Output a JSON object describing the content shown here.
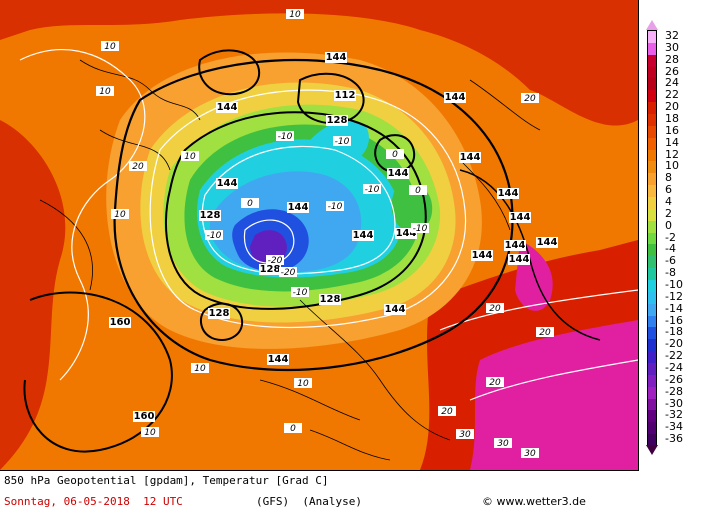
{
  "map": {
    "variable": "850 hPa Geopotential [gpdam], Temperatur [Grad C]",
    "date_line": "Sonntag, 06-05-2018  12 UTC",
    "model": "(GFS)  (Analyse)",
    "credit": "www.wetter3.de",
    "colors": {
      "warm_outer": "#d83000",
      "orange": "#f07800",
      "light_orange": "#f8a030",
      "yellow": "#f0d040",
      "lime": "#a0e040",
      "green": "#40c040",
      "cyan": "#20d0e0",
      "light_blue": "#40a8f0",
      "blue": "#2050e0",
      "violet": "#6020c0",
      "magenta": "#f020d0"
    },
    "geopotential_labels": [
      "144",
      "144",
      "144",
      "144",
      "144",
      "144",
      "144",
      "144",
      "144",
      "144",
      "144",
      "144",
      "128",
      "128",
      "128",
      "128",
      "128",
      "112",
      "160",
      "160",
      "144",
      "144",
      "144",
      "144",
      "144"
    ],
    "temperature_labels": [
      "10",
      "10",
      "10",
      "10",
      "10",
      "20",
      "20",
      "-10",
      "-10",
      "-10",
      "-10",
      "-10",
      "-20",
      "-20",
      "-10",
      "0",
      "0",
      "0",
      "10",
      "10",
      "20",
      "20",
      "20",
      "30",
      "30",
      "30",
      "20",
      "10",
      "0",
      "-10"
    ]
  },
  "legend": {
    "labels": [
      "32",
      "30",
      "28",
      "26",
      "24",
      "22",
      "20",
      "18",
      "16",
      "14",
      "12",
      "10",
      "8",
      "6",
      "4",
      "2",
      "0",
      "-2",
      "-4",
      "-6",
      "-8",
      "-10",
      "-12",
      "-14",
      "-16",
      "-18",
      "-20",
      "-22",
      "-24",
      "-26",
      "-28",
      "-30",
      "-32",
      "-34",
      "-36"
    ],
    "colors": [
      "#f8b0f8",
      "#e860e8",
      "#c80030",
      "#c00020",
      "#b80018",
      "#d00010",
      "#d82000",
      "#e03000",
      "#e84800",
      "#f06000",
      "#f07800",
      "#f08c10",
      "#f8a030",
      "#f8b840",
      "#f0d040",
      "#d8e040",
      "#a0e040",
      "#70d840",
      "#40c040",
      "#30c070",
      "#20c8a0",
      "#20d0e0",
      "#30c0f0",
      "#40a8f0",
      "#3080f0",
      "#2050e0",
      "#2030d0",
      "#4020c8",
      "#6020c0",
      "#8020c0",
      "#a020c0",
      "#8010a0",
      "#600080",
      "#500070",
      "#400060"
    ]
  }
}
